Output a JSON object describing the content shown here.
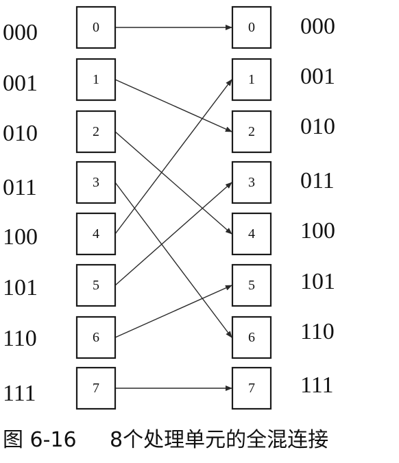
{
  "left_labels": [
    "000",
    "001",
    "010",
    "011",
    "100",
    "101",
    "110",
    "111"
  ],
  "right_labels": [
    "000",
    "001",
    "010",
    "011",
    "100",
    "101",
    "110",
    "111"
  ],
  "left_nodes": [
    "0",
    "1",
    "2",
    "3",
    "4",
    "5",
    "6",
    "7"
  ],
  "right_nodes": [
    "0",
    "1",
    "2",
    "3",
    "4",
    "5",
    "6",
    "7"
  ],
  "connections": [
    {
      "from": 0,
      "to": 0
    },
    {
      "from": 1,
      "to": 2
    },
    {
      "from": 2,
      "to": 4
    },
    {
      "from": 3,
      "to": 6
    },
    {
      "from": 4,
      "to": 1
    },
    {
      "from": 5,
      "to": 3
    },
    {
      "from": 6,
      "to": 5
    },
    {
      "from": 7,
      "to": 7
    }
  ],
  "caption": {
    "figure_number": "图 6-16",
    "title": "8个处理单元的全混连接"
  }
}
